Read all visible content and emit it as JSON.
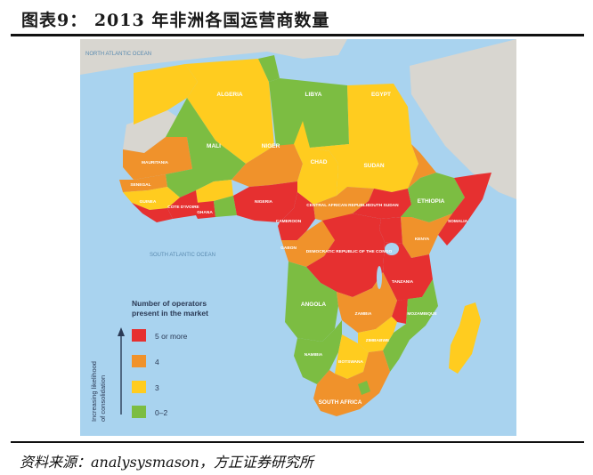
{
  "figure": {
    "title": "图表9：  2013 年非洲各国运营商数量",
    "source": "资料来源：analysysmason，方正证券研究所"
  },
  "map": {
    "ocean_labels": {
      "north_atlantic": "NORTH ATLANTIC OCEAN",
      "south_atlantic": "SOUTH ATLANTIC OCEAN"
    },
    "countries": {
      "algeria": "ALGERIA",
      "libya": "LIBYA",
      "egypt": "EGYPT",
      "mali": "MALI",
      "niger": "NIGER",
      "chad": "CHAD",
      "sudan": "SUDAN",
      "mauritania": "MAURITANIA",
      "senegal": "SENEGAL",
      "guinea": "GUINEA",
      "cote_divoire": "COTE D'IVOIRE",
      "ghana": "GHANA",
      "nigeria": "NIGERIA",
      "cameroon": "CAMEROON",
      "car": "CENTRAL AFRICAN REPUBLIC",
      "south_sudan": "SOUTH SUDAN",
      "ethiopia": "ETHIOPIA",
      "somalia": "SOMALIA",
      "kenya": "KENYA",
      "gabon": "GABON",
      "drc": "DEMOCRATIC REPUBLIC OF THE CONGO",
      "tanzania": "TANZANIA",
      "angola": "ANGOLA",
      "zambia": "ZAMBIA",
      "mozambique": "MOZAMBIQUE",
      "zimbabwe": "ZIMBABWE",
      "namibia": "NAMIBIA",
      "botswana": "BOTSWANA",
      "south_africa": "SOUTH AFRICA"
    },
    "colors": {
      "ocean": "#a9d3ef",
      "land_other": "#d8d6d0",
      "five_plus": "#e63030",
      "four": "#f0922b",
      "three": "#ffcc1f",
      "zero_two": "#7cbd42"
    }
  },
  "legend": {
    "heading_line1": "Number of operators",
    "heading_line2": "present in the market",
    "axis_line1": "Increasing likelihood",
    "axis_line2": "of consolidation",
    "items": [
      "5 or more",
      "4",
      "3",
      "0–2"
    ]
  }
}
